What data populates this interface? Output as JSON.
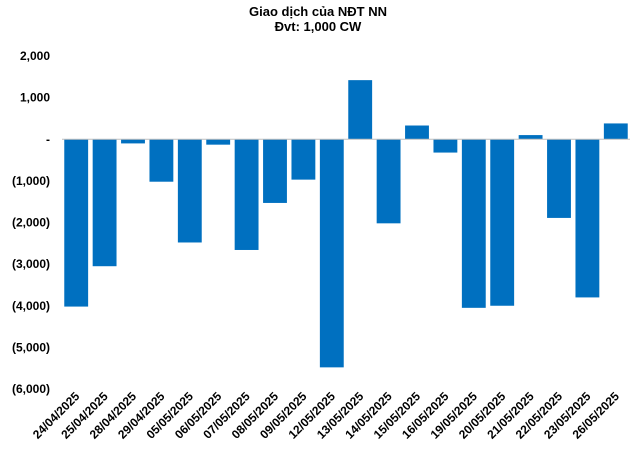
{
  "chart_data": {
    "type": "bar",
    "title": "Giao dịch của NĐT NN",
    "subtitle": "Đvt: 1,000 CW",
    "categories": [
      "24/04/2025",
      "25/04/2025",
      "28/04/2025",
      "29/04/2025",
      "05/05/2025",
      "06/05/2025",
      "07/05/2025",
      "08/05/2025",
      "09/05/2025",
      "12/05/2025",
      "13/05/2025",
      "14/05/2025",
      "15/05/2025",
      "16/05/2025",
      "19/05/2025",
      "20/05/2025",
      "21/05/2025",
      "22/05/2025",
      "23/05/2025",
      "26/05/2025"
    ],
    "values": [
      -4020,
      -3050,
      -100,
      -1020,
      -2480,
      -130,
      -2660,
      -1530,
      -970,
      -5480,
      1420,
      -2020,
      330,
      -320,
      -4050,
      -4000,
      100,
      -1890,
      -3800,
      380
    ],
    "ylim": [
      -6000,
      2000
    ],
    "yticks": [
      2000,
      1000,
      0,
      -1000,
      -2000,
      -3000,
      -4000,
      -5000,
      -6000
    ],
    "ytick_labels": [
      "2,000",
      "1,000",
      "-",
      "(1,000)",
      "(2,000)",
      "(3,000)",
      "(4,000)",
      "(5,000)",
      "(6,000)"
    ],
    "bar_color": "#0070C0",
    "grid": false,
    "legend": "none"
  }
}
